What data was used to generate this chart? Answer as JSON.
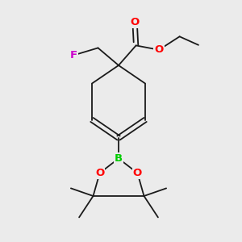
{
  "bg_color": "#ebebeb",
  "bond_color": "#1a1a1a",
  "bond_width": 1.3,
  "atom_colors": {
    "O": "#ff0000",
    "F": "#cc00cc",
    "B": "#00cc00",
    "C": "#1a1a1a"
  },
  "font_size": 8.5,
  "fig_size": [
    3.0,
    3.0
  ],
  "dpi": 100,
  "xlim": [
    0,
    10
  ],
  "ylim": [
    0,
    10
  ]
}
